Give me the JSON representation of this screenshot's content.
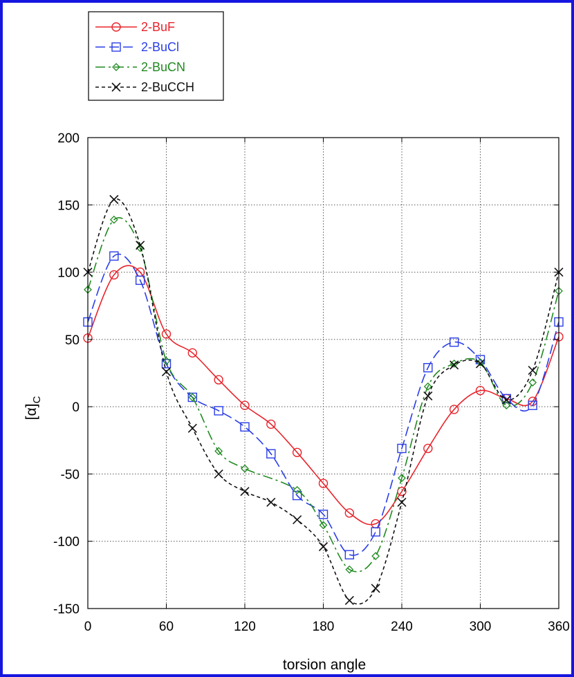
{
  "chart_data": {
    "type": "line",
    "xlabel": "torsion angle",
    "ylabel_main": "[α]",
    "ylabel_sub": "C",
    "xlim": [
      0,
      360
    ],
    "ylim": [
      -150,
      200
    ],
    "xticks": [
      0,
      60,
      120,
      180,
      240,
      300,
      360
    ],
    "yticks": [
      -150,
      -100,
      -50,
      0,
      50,
      100,
      150,
      200
    ],
    "xtick_labels": [
      "0",
      "60",
      "120",
      "180",
      "240",
      "300",
      "360"
    ],
    "ytick_labels": [
      "-150",
      "-100",
      "-50",
      "0",
      "50",
      "100",
      "150",
      "200"
    ],
    "grid": true,
    "legend_position": "top-left, above plot",
    "x": [
      0,
      20,
      40,
      60,
      80,
      100,
      120,
      140,
      160,
      180,
      200,
      220,
      240,
      260,
      280,
      300,
      320,
      340,
      360
    ],
    "series": [
      {
        "name": "2-BuF",
        "color": "#e8232a",
        "marker": "circle",
        "dash": "solid",
        "values": [
          51,
          98,
          100,
          54,
          40,
          20,
          1,
          -13,
          -34,
          -57,
          -79,
          -87,
          -63,
          -31,
          -2,
          12,
          6,
          4,
          52
        ]
      },
      {
        "name": "2-BuCl",
        "color": "#2a3ee6",
        "marker": "square",
        "dash": "longdash",
        "values": [
          63,
          112,
          94,
          32,
          7,
          -3,
          -15,
          -35,
          -66,
          -80,
          -110,
          -93,
          -31,
          29,
          48,
          35,
          6,
          1,
          63
        ]
      },
      {
        "name": "2-BuCN",
        "color": "#1f8a1f",
        "marker": "diamond",
        "dash": "dashdot",
        "values": [
          87,
          139,
          118,
          34,
          7,
          -33,
          -46,
          null,
          -62,
          -88,
          -121,
          -111,
          -53,
          15,
          32,
          33,
          1,
          18,
          86
        ]
      },
      {
        "name": "2-BuCCH",
        "color": "#111111",
        "marker": "x",
        "dash": "shortdash",
        "values": [
          100,
          154,
          120,
          26,
          -16,
          -50,
          -63,
          -71,
          -84,
          -104,
          -144,
          -135,
          -71,
          8,
          31,
          32,
          5,
          27,
          100
        ]
      }
    ]
  }
}
